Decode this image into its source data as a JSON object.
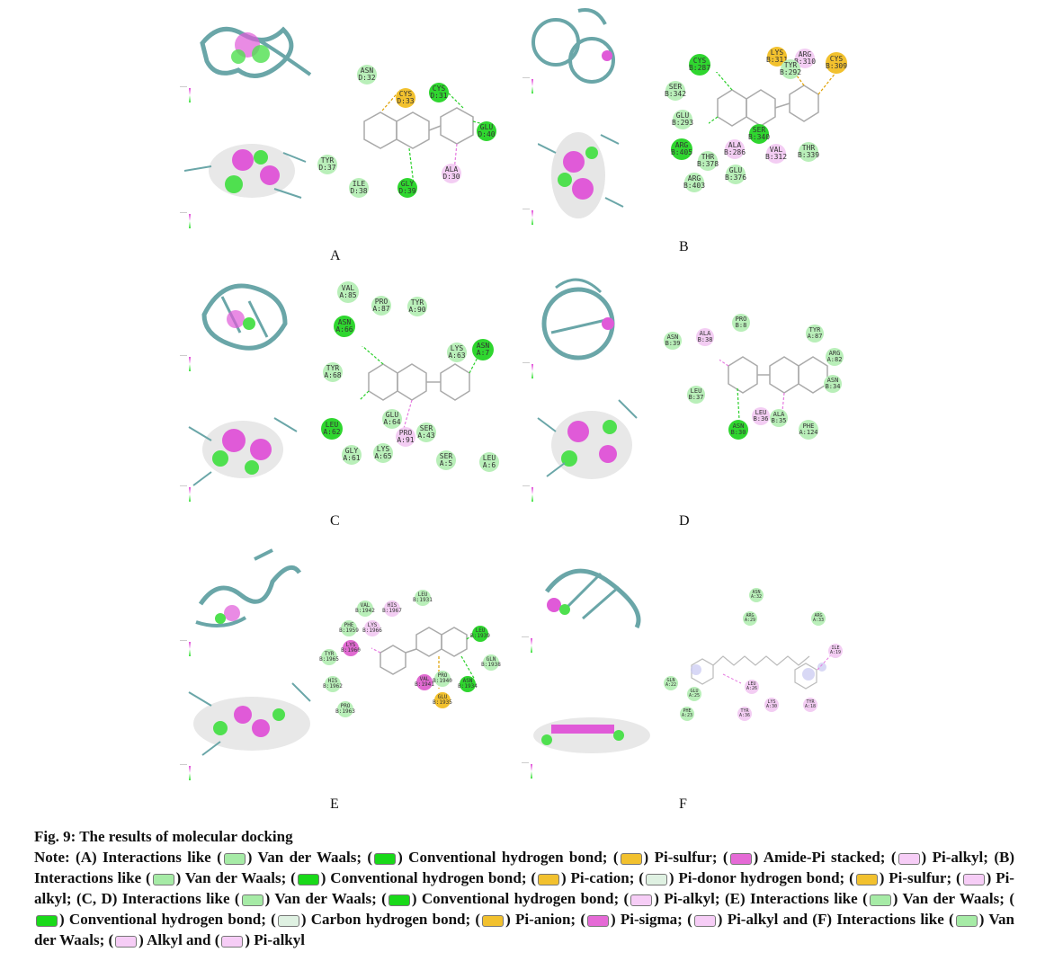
{
  "figure": {
    "title": "Fig. 9: The results of molecular docking",
    "panels": [
      {
        "letter": "A",
        "residues": [
          {
            "label": "ASN D:32",
            "type": "vdw"
          },
          {
            "label": "CYS D:33",
            "type": "pis"
          },
          {
            "label": "CYS D:31",
            "type": "hb"
          },
          {
            "label": "GLU D:40",
            "type": "hb"
          },
          {
            "label": "TYR D:37",
            "type": "vdw"
          },
          {
            "label": "ILE D:38",
            "type": "vdw"
          },
          {
            "label": "GLY D:39",
            "type": "hb"
          },
          {
            "label": "ALA D:30",
            "type": "pia"
          }
        ]
      },
      {
        "letter": "B",
        "residues": [
          {
            "label": "CYS B:287",
            "type": "hb"
          },
          {
            "label": "LYS B:311",
            "type": "pis"
          },
          {
            "label": "ARG B:310",
            "type": "pia"
          },
          {
            "label": "TYR B:292",
            "type": "vdw"
          },
          {
            "label": "CYS B:309",
            "type": "pis"
          },
          {
            "label": "SER B:342",
            "type": "vdw"
          },
          {
            "label": "GLU B:293",
            "type": "vdw"
          },
          {
            "label": "ARG B:405",
            "type": "hb"
          },
          {
            "label": "ALA B:286",
            "type": "pia"
          },
          {
            "label": "SER B:340",
            "type": "hb"
          },
          {
            "label": "VAL B:312",
            "type": "pia"
          },
          {
            "label": "THR B:339",
            "type": "vdw"
          },
          {
            "label": "THR B:378",
            "type": "vdw"
          },
          {
            "label": "GLU B:376",
            "type": "vdw"
          },
          {
            "label": "ARG B:403",
            "type": "vdw"
          }
        ]
      },
      {
        "letter": "C",
        "residues": [
          {
            "label": "VAL A:85",
            "type": "vdw"
          },
          {
            "label": "PRO A:87",
            "type": "vdw"
          },
          {
            "label": "TYR A:90",
            "type": "vdw"
          },
          {
            "label": "ASN A:66",
            "type": "hb"
          },
          {
            "label": "LYS A:63",
            "type": "vdw"
          },
          {
            "label": "ASN A:7",
            "type": "hb"
          },
          {
            "label": "TYR A:68",
            "type": "vdw"
          },
          {
            "label": "GLU A:64",
            "type": "vdw"
          },
          {
            "label": "LEU A:62",
            "type": "hb"
          },
          {
            "label": "PRO A:91",
            "type": "pia"
          },
          {
            "label": "SER A:43",
            "type": "vdw"
          },
          {
            "label": "GLY A:61",
            "type": "vdw"
          },
          {
            "label": "LYS A:65",
            "type": "vdw"
          },
          {
            "label": "SER A:5",
            "type": "vdw"
          },
          {
            "label": "LEU A:6",
            "type": "vdw"
          }
        ]
      },
      {
        "letter": "D",
        "residues": [
          {
            "label": "PRO B:8",
            "type": "vdw"
          },
          {
            "label": "ASN B:39",
            "type": "vdw"
          },
          {
            "label": "ALA B:38",
            "type": "pia"
          },
          {
            "label": "TYR A:87",
            "type": "vdw"
          },
          {
            "label": "ARG A:82",
            "type": "vdw"
          },
          {
            "label": "ASN B:34",
            "type": "vdw"
          },
          {
            "label": "LEU B:37",
            "type": "vdw"
          },
          {
            "label": "LEU B:36",
            "type": "pia"
          },
          {
            "label": "ALA B:35",
            "type": "vdw"
          },
          {
            "label": "ASN B:30",
            "type": "hb"
          },
          {
            "label": "PHE A:124",
            "type": "vdw"
          }
        ]
      },
      {
        "letter": "E",
        "residues": [
          {
            "label": "LEU B:1931",
            "type": "vdw"
          },
          {
            "label": "VAL B:1942",
            "type": "vdw"
          },
          {
            "label": "HIS B:1967",
            "type": "pia"
          },
          {
            "label": "PHE B:1959",
            "type": "vdw"
          },
          {
            "label": "LYS B:1966",
            "type": "pia"
          },
          {
            "label": "LEU B:1939",
            "type": "hb"
          },
          {
            "label": "TYR B:1965",
            "type": "vdw"
          },
          {
            "label": "LYS B:1960",
            "type": "amp"
          },
          {
            "label": "GLN B:1938",
            "type": "vdw"
          },
          {
            "label": "HIS B:1962",
            "type": "vdw"
          },
          {
            "label": "VAL B:1941",
            "type": "amp"
          },
          {
            "label": "PRO B:1940",
            "type": "vdw"
          },
          {
            "label": "ASN B:1934",
            "type": "hb"
          },
          {
            "label": "GLU B:1935",
            "type": "pis"
          },
          {
            "label": "PRO B:1963",
            "type": "vdw"
          }
        ]
      },
      {
        "letter": "F",
        "residues": [
          {
            "label": "ASN A:32",
            "type": "vdw"
          },
          {
            "label": "ARG A:29",
            "type": "vdw"
          },
          {
            "label": "ARG A:33",
            "type": "vdw"
          },
          {
            "label": "ILE A:19",
            "type": "pia"
          },
          {
            "label": "GLN A:22",
            "type": "vdw"
          },
          {
            "label": "LEU A:26",
            "type": "pia"
          },
          {
            "label": "GLU A:25",
            "type": "vdw"
          },
          {
            "label": "LYS A:30",
            "type": "pia"
          },
          {
            "label": "PHE A:23",
            "type": "vdw"
          },
          {
            "label": "TYR A:36",
            "type": "pia"
          },
          {
            "label": "TYR A:18",
            "type": "pia"
          }
        ]
      }
    ]
  },
  "note_segments": [
    {
      "t": "Note: (A) Interactions like ("
    },
    {
      "sw": "#a6eba6"
    },
    {
      "t": ") Van der Waals; ("
    },
    {
      "sw": "#19d919"
    },
    {
      "t": ") Conventional hydrogen bond; ("
    },
    {
      "sw": "#f2c12e"
    },
    {
      "t": ") Pi-sulfur; ("
    },
    {
      "sw": "#e56ad6"
    },
    {
      "t": ") Amide-Pi stacked; ("
    },
    {
      "sw": "#f6cdf6"
    },
    {
      "t": ") Pi-alkyl; (B) Interactions like ("
    },
    {
      "sw": "#a6eba6"
    },
    {
      "t": ") Van der Waals; ("
    },
    {
      "sw": "#19d919"
    },
    {
      "t": ") Conventional hydrogen bond; ("
    },
    {
      "sw": "#f2c12e"
    },
    {
      "t": ") Pi-cation; ("
    },
    {
      "sw": "#dff1e2"
    },
    {
      "t": ") Pi-donor hydrogen bond; ("
    },
    {
      "sw": "#f2c12e"
    },
    {
      "t": ") Pi-sulfur; ("
    },
    {
      "sw": "#f6cdf6"
    },
    {
      "t": ") Pi-alkyl; (C, D) Interactions like ("
    },
    {
      "sw": "#a6eba6"
    },
    {
      "t": ") Van der Waals; ("
    },
    {
      "sw": "#19d919"
    },
    {
      "t": ") Conventional hydrogen bond; ("
    },
    {
      "sw": "#f6cdf6"
    },
    {
      "t": ") Pi-alkyl; (E) Interactions like ("
    },
    {
      "sw": "#a6eba6"
    },
    {
      "t": ") Van der Waals; ("
    },
    {
      "sw": "#19d919"
    },
    {
      "t": ") Conventional hydrogen bond; ("
    },
    {
      "sw": "#dff1e2"
    },
    {
      "t": ") Carbon hydrogen bond; ("
    },
    {
      "sw": "#f2c12e"
    },
    {
      "t": ") Pi-anion; ("
    },
    {
      "sw": "#e56ad6"
    },
    {
      "t": ") Pi-sigma; ("
    },
    {
      "sw": "#f6cdf6"
    },
    {
      "t": ") Pi-alkyl and (F) Interactions like ("
    },
    {
      "sw": "#a6eba6"
    },
    {
      "t": ") Van der Waals; ("
    },
    {
      "sw": "#f6cdf6"
    },
    {
      "t": ") Alkyl and ("
    },
    {
      "sw": "#f6cdf6"
    },
    {
      "t": ") Pi-alkyl"
    }
  ]
}
